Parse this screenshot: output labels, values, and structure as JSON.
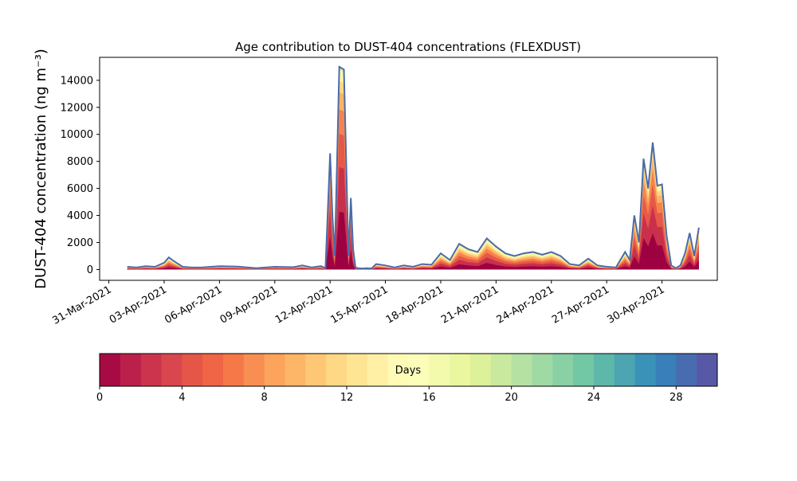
{
  "chart_data": {
    "type": "area",
    "title": "Age contribution to DUST-404 concentrations (FLEXDUST)",
    "ylabel": "DUST-404 concentration (ng m⁻³)",
    "xlabel": "",
    "x_range": [
      "2021-03-30T12:00",
      "2021-05-03T00:00"
    ],
    "ylim": [
      -800,
      15700
    ],
    "y_ticks": [
      0,
      2000,
      4000,
      6000,
      8000,
      10000,
      12000,
      14000
    ],
    "x_ticks": [
      "31-Mar-2021",
      "03-Apr-2021",
      "06-Apr-2021",
      "09-Apr-2021",
      "12-Apr-2021",
      "15-Apr-2021",
      "18-Apr-2021",
      "21-Apr-2021",
      "24-Apr-2021",
      "27-Apr-2021",
      "30-Apr-2021"
    ],
    "x_tick_dates": [
      "2021-03-31",
      "2021-04-03",
      "2021-04-06",
      "2021-04-09",
      "2021-04-12",
      "2021-04-15",
      "2021-04-18",
      "2021-04-21",
      "2021-04-24",
      "2021-04-27",
      "2021-04-30"
    ],
    "total": {
      "t": [
        "2021-04-01T00:00",
        "2021-04-01T12:00",
        "2021-04-02T00:00",
        "2021-04-02T12:00",
        "2021-04-03T00:00",
        "2021-04-03T06:00",
        "2021-04-03T12:00",
        "2021-04-04T00:00",
        "2021-04-04T12:00",
        "2021-04-05T00:00",
        "2021-04-06T00:00",
        "2021-04-07T00:00",
        "2021-04-08T00:00",
        "2021-04-09T00:00",
        "2021-04-10T00:00",
        "2021-04-10T12:00",
        "2021-04-11T00:00",
        "2021-04-11T12:00",
        "2021-04-11T18:00",
        "2021-04-12T00:00",
        "2021-04-12T03:00",
        "2021-04-12T06:00",
        "2021-04-12T09:00",
        "2021-04-12T12:00",
        "2021-04-12T18:00",
        "2021-04-13T00:00",
        "2021-04-13T03:00",
        "2021-04-13T06:00",
        "2021-04-13T09:00",
        "2021-04-13T12:00",
        "2021-04-13T18:00",
        "2021-04-14T00:00",
        "2021-04-14T06:00",
        "2021-04-14T12:00",
        "2021-04-15T00:00",
        "2021-04-15T12:00",
        "2021-04-16T00:00",
        "2021-04-16T12:00",
        "2021-04-17T00:00",
        "2021-04-17T12:00",
        "2021-04-18T00:00",
        "2021-04-18T12:00",
        "2021-04-19T00:00",
        "2021-04-19T12:00",
        "2021-04-20T00:00",
        "2021-04-20T12:00",
        "2021-04-21T00:00",
        "2021-04-21T12:00",
        "2021-04-22T00:00",
        "2021-04-22T12:00",
        "2021-04-23T00:00",
        "2021-04-23T12:00",
        "2021-04-24T00:00",
        "2021-04-24T12:00",
        "2021-04-25T00:00",
        "2021-04-25T12:00",
        "2021-04-26T00:00",
        "2021-04-26T12:00",
        "2021-04-27T00:00",
        "2021-04-27T12:00",
        "2021-04-28T00:00",
        "2021-04-28T06:00",
        "2021-04-28T12:00",
        "2021-04-28T18:00",
        "2021-04-29T00:00",
        "2021-04-29T06:00",
        "2021-04-29T12:00",
        "2021-04-29T18:00",
        "2021-04-30T00:00",
        "2021-04-30T06:00",
        "2021-04-30T12:00",
        "2021-04-30T18:00",
        "2021-05-01T00:00",
        "2021-05-01T06:00",
        "2021-05-01T12:00",
        "2021-05-01T18:00",
        "2021-05-02T00:00"
      ],
      "values": [
        200,
        150,
        250,
        200,
        500,
        900,
        650,
        200,
        150,
        150,
        250,
        220,
        100,
        200,
        170,
        300,
        150,
        250,
        100,
        8600,
        4000,
        1000,
        8000,
        15000,
        14800,
        1000,
        5300,
        1500,
        150,
        100,
        80,
        100,
        80,
        400,
        300,
        150,
        300,
        200,
        400,
        350,
        1200,
        700,
        1900,
        1500,
        1300,
        2300,
        1700,
        1200,
        1000,
        1200,
        1300,
        1100,
        1300,
        1000,
        400,
        300,
        800,
        300,
        200,
        150,
        1300,
        700,
        4000,
        2000,
        8200,
        6000,
        9400,
        6200,
        6300,
        2500,
        300,
        100,
        300,
        1200,
        2700,
        1000,
        3100
      ]
    },
    "age_bands": {
      "unit": "Days",
      "bins": 30,
      "min": 0,
      "max": 30,
      "ticks": [
        0,
        4,
        8,
        12,
        16,
        20,
        24,
        28
      ]
    },
    "colorbar_label": "Days",
    "colors": {
      "outline": "#4c6ba6",
      "young": "#a0103e",
      "old": "#5b4fa0"
    },
    "grid": false
  }
}
